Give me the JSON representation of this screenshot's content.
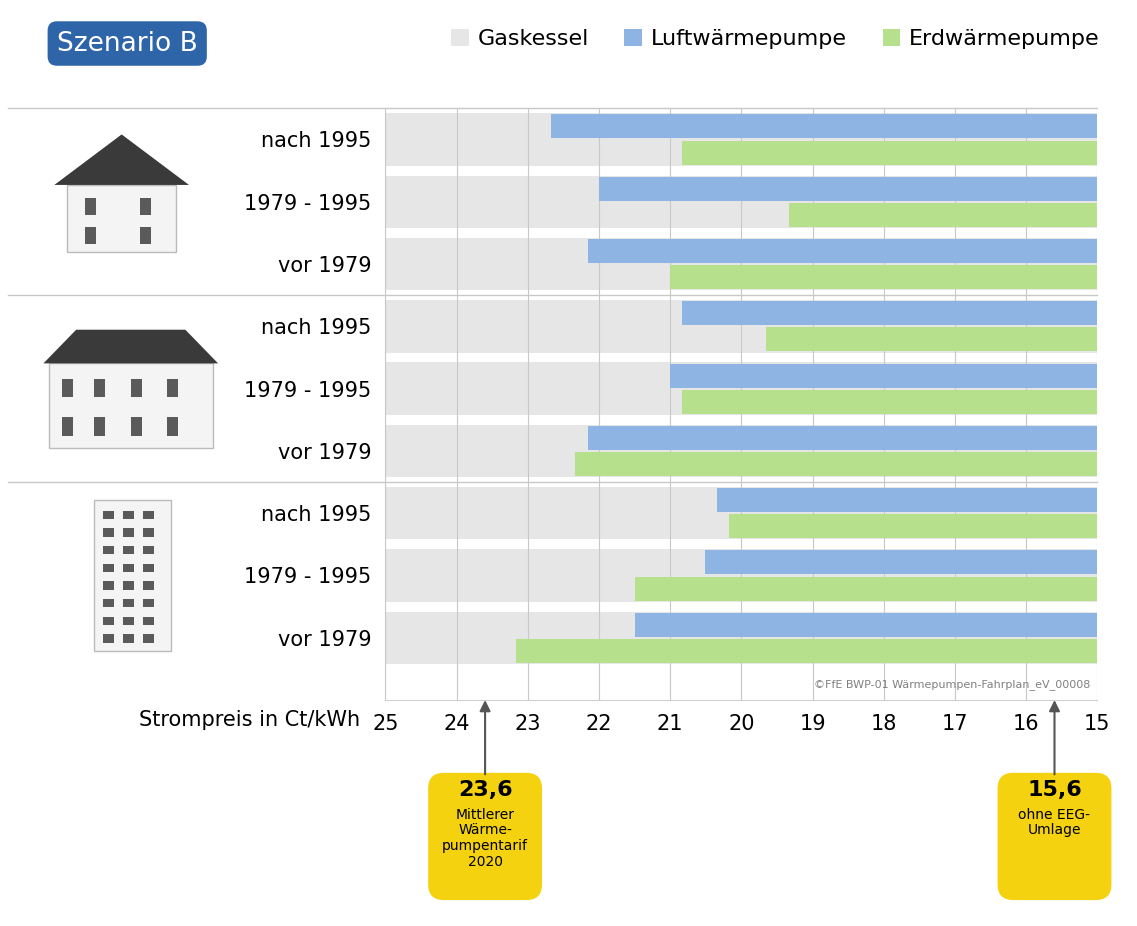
{
  "chart_data": {
    "type": "bar",
    "orientation": "horizontal",
    "title": "Szenario B",
    "x_label": "Strompreis in Ct/kWh",
    "categories": [
      "nach 1995",
      "1979 - 1995",
      "vor 1979",
      "nach 1995",
      "1979 - 1995",
      "vor 1979",
      "nach 1995",
      "1979 - 1995",
      "vor 1979"
    ],
    "series": [
      {
        "name": "Gaskessel",
        "color": "#e6e6e6",
        "values": [
          25,
          25,
          25,
          25,
          25,
          25,
          25,
          25,
          25
        ]
      },
      {
        "name": "Luftwärmepumpe",
        "color": "#8db4e2",
        "values": [
          22.67,
          22.0,
          22.16,
          20.83,
          21.0,
          22.16,
          20.34,
          20.51,
          21.5
        ]
      },
      {
        "name": "Erdwärmepumpe",
        "color": "#b7e08d",
        "values": [
          20.83,
          19.33,
          21.0,
          19.66,
          20.83,
          22.33,
          20.17,
          21.5,
          23.17
        ]
      }
    ],
    "xlim": [
      25,
      15
    ],
    "xticks": [
      25,
      24,
      23,
      22,
      21,
      20,
      19,
      18,
      17,
      16,
      15
    ],
    "grid": true,
    "legend": "upper right",
    "annotations": [
      {
        "value": 23.6,
        "label": "23,6",
        "text": "Mittlerer\nWärme-\npumpentarif\n2020"
      },
      {
        "value": 15.6,
        "label": "15,6",
        "text": "ohne EEG-\nUmlage"
      }
    ],
    "source": "©FfE BWP-01 Wärmepumpen-Fahrplan_eV_00008"
  }
}
